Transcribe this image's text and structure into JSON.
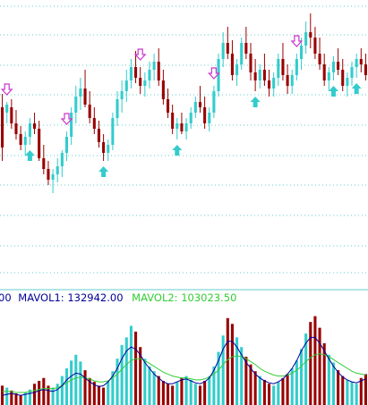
{
  "chart_data": {
    "type": "candlestick",
    "title": "",
    "colors": {
      "up": "#33CCCC",
      "down": "#990000",
      "grid": "#66CCCC",
      "signal_down": "#CC33CC",
      "signal_up": "#33CCCC",
      "mavol1": "#000099",
      "mavol2": "#33CC33",
      "legend_prefix": "#000099"
    },
    "legend": {
      "prefix": "00",
      "mavol1_label": "MAVOL1: 132942.00",
      "mavol2_label": "MAVOL2: 103023.50"
    },
    "price_axis": {
      "ylim": [
        0,
        450
      ],
      "grid": true
    },
    "volume_axis": {
      "ylim": [
        0,
        100
      ],
      "grid": false
    },
    "candles": [
      {
        "o": 120,
        "h": 125,
        "l": 100,
        "c": 105
      },
      {
        "o": 118,
        "h": 122,
        "l": 114,
        "c": 121
      },
      {
        "o": 120,
        "h": 123,
        "l": 112,
        "c": 114
      },
      {
        "o": 114,
        "h": 119,
        "l": 108,
        "c": 110
      },
      {
        "o": 110,
        "h": 113,
        "l": 104,
        "c": 106
      },
      {
        "o": 106,
        "h": 111,
        "l": 102,
        "c": 109
      },
      {
        "o": 109,
        "h": 116,
        "l": 106,
        "c": 114
      },
      {
        "o": 114,
        "h": 118,
        "l": 110,
        "c": 112
      },
      {
        "o": 112,
        "h": 115,
        "l": 100,
        "c": 101
      },
      {
        "o": 101,
        "h": 106,
        "l": 95,
        "c": 97
      },
      {
        "o": 97,
        "h": 100,
        "l": 91,
        "c": 93
      },
      {
        "o": 93,
        "h": 97,
        "l": 88,
        "c": 95
      },
      {
        "o": 95,
        "h": 101,
        "l": 92,
        "c": 98
      },
      {
        "o": 98,
        "h": 104,
        "l": 94,
        "c": 103
      },
      {
        "o": 103,
        "h": 111,
        "l": 100,
        "c": 109
      },
      {
        "o": 109,
        "h": 120,
        "l": 106,
        "c": 118
      },
      {
        "o": 118,
        "h": 128,
        "l": 114,
        "c": 124
      },
      {
        "o": 124,
        "h": 131,
        "l": 119,
        "c": 127
      },
      {
        "o": 127,
        "h": 134,
        "l": 120,
        "c": 121
      },
      {
        "o": 121,
        "h": 126,
        "l": 114,
        "c": 116
      },
      {
        "o": 116,
        "h": 120,
        "l": 110,
        "c": 112
      },
      {
        "o": 112,
        "h": 115,
        "l": 105,
        "c": 107
      },
      {
        "o": 107,
        "h": 110,
        "l": 100,
        "c": 103
      },
      {
        "o": 103,
        "h": 108,
        "l": 100,
        "c": 106
      },
      {
        "o": 106,
        "h": 118,
        "l": 104,
        "c": 116
      },
      {
        "o": 116,
        "h": 126,
        "l": 113,
        "c": 123
      },
      {
        "o": 123,
        "h": 130,
        "l": 118,
        "c": 126
      },
      {
        "o": 126,
        "h": 134,
        "l": 122,
        "c": 130
      },
      {
        "o": 130,
        "h": 138,
        "l": 127,
        "c": 135
      },
      {
        "o": 135,
        "h": 141,
        "l": 129,
        "c": 131
      },
      {
        "o": 131,
        "h": 135,
        "l": 125,
        "c": 128
      },
      {
        "o": 128,
        "h": 133,
        "l": 124,
        "c": 130
      },
      {
        "o": 130,
        "h": 137,
        "l": 127,
        "c": 134
      },
      {
        "o": 134,
        "h": 140,
        "l": 130,
        "c": 137
      },
      {
        "o": 137,
        "h": 142,
        "l": 128,
        "c": 130
      },
      {
        "o": 130,
        "h": 134,
        "l": 121,
        "c": 123
      },
      {
        "o": 123,
        "h": 127,
        "l": 116,
        "c": 118
      },
      {
        "o": 118,
        "h": 121,
        "l": 110,
        "c": 112
      },
      {
        "o": 112,
        "h": 116,
        "l": 108,
        "c": 114
      },
      {
        "o": 114,
        "h": 118,
        "l": 110,
        "c": 111
      },
      {
        "o": 111,
        "h": 116,
        "l": 108,
        "c": 114
      },
      {
        "o": 114,
        "h": 120,
        "l": 112,
        "c": 118
      },
      {
        "o": 118,
        "h": 124,
        "l": 116,
        "c": 122
      },
      {
        "o": 122,
        "h": 128,
        "l": 118,
        "c": 120
      },
      {
        "o": 120,
        "h": 124,
        "l": 112,
        "c": 114
      },
      {
        "o": 114,
        "h": 120,
        "l": 111,
        "c": 118
      },
      {
        "o": 118,
        "h": 128,
        "l": 116,
        "c": 126
      },
      {
        "o": 126,
        "h": 140,
        "l": 124,
        "c": 138
      },
      {
        "o": 138,
        "h": 148,
        "l": 135,
        "c": 144
      },
      {
        "o": 144,
        "h": 150,
        "l": 138,
        "c": 140
      },
      {
        "o": 140,
        "h": 145,
        "l": 130,
        "c": 132
      },
      {
        "o": 132,
        "h": 138,
        "l": 128,
        "c": 136
      },
      {
        "o": 136,
        "h": 146,
        "l": 134,
        "c": 144
      },
      {
        "o": 144,
        "h": 150,
        "l": 138,
        "c": 140
      },
      {
        "o": 140,
        "h": 144,
        "l": 130,
        "c": 133
      },
      {
        "o": 133,
        "h": 138,
        "l": 126,
        "c": 130
      },
      {
        "o": 130,
        "h": 136,
        "l": 127,
        "c": 134
      },
      {
        "o": 134,
        "h": 140,
        "l": 128,
        "c": 130
      },
      {
        "o": 130,
        "h": 134,
        "l": 124,
        "c": 127
      },
      {
        "o": 127,
        "h": 133,
        "l": 124,
        "c": 131
      },
      {
        "o": 131,
        "h": 140,
        "l": 128,
        "c": 138
      },
      {
        "o": 138,
        "h": 144,
        "l": 130,
        "c": 132
      },
      {
        "o": 132,
        "h": 136,
        "l": 125,
        "c": 128
      },
      {
        "o": 128,
        "h": 134,
        "l": 125,
        "c": 132
      },
      {
        "o": 132,
        "h": 140,
        "l": 130,
        "c": 138
      },
      {
        "o": 138,
        "h": 146,
        "l": 134,
        "c": 143
      },
      {
        "o": 143,
        "h": 152,
        "l": 140,
        "c": 148
      },
      {
        "o": 148,
        "h": 155,
        "l": 142,
        "c": 146
      },
      {
        "o": 146,
        "h": 150,
        "l": 138,
        "c": 140
      },
      {
        "o": 140,
        "h": 146,
        "l": 134,
        "c": 136
      },
      {
        "o": 136,
        "h": 140,
        "l": 128,
        "c": 130
      },
      {
        "o": 130,
        "h": 135,
        "l": 126,
        "c": 133
      },
      {
        "o": 133,
        "h": 139,
        "l": 130,
        "c": 137
      },
      {
        "o": 137,
        "h": 142,
        "l": 132,
        "c": 134
      },
      {
        "o": 134,
        "h": 138,
        "l": 126,
        "c": 128
      },
      {
        "o": 128,
        "h": 133,
        "l": 124,
        "c": 131
      },
      {
        "o": 131,
        "h": 137,
        "l": 128,
        "c": 135
      },
      {
        "o": 135,
        "h": 140,
        "l": 131,
        "c": 138
      },
      {
        "o": 138,
        "h": 142,
        "l": 133,
        "c": 136
      },
      {
        "o": 136,
        "h": 140,
        "l": 130,
        "c": 132
      }
    ],
    "volume": [
      20,
      18,
      15,
      12,
      10,
      13,
      16,
      22,
      25,
      28,
      20,
      18,
      22,
      30,
      38,
      46,
      52,
      45,
      36,
      28,
      24,
      20,
      18,
      25,
      35,
      48,
      62,
      70,
      82,
      76,
      60,
      48,
      40,
      35,
      30,
      25,
      22,
      20,
      24,
      28,
      30,
      26,
      22,
      20,
      25,
      30,
      40,
      55,
      72,
      90,
      84,
      70,
      60,
      50,
      42,
      35,
      30,
      26,
      22,
      20,
      24,
      28,
      32,
      38,
      46,
      58,
      74,
      86,
      92,
      80,
      64,
      52,
      44,
      36,
      30,
      26,
      24,
      22,
      28,
      32
    ],
    "mavol1": [
      10,
      11,
      12,
      11,
      10,
      11,
      12,
      13,
      15,
      16,
      15,
      14,
      16,
      20,
      26,
      30,
      33,
      32,
      28,
      24,
      21,
      19,
      20,
      24,
      30,
      38,
      48,
      56,
      60,
      58,
      52,
      44,
      38,
      32,
      28,
      24,
      22,
      22,
      24,
      26,
      27,
      25,
      23,
      22,
      24,
      28,
      36,
      46,
      58,
      66,
      66,
      60,
      52,
      44,
      38,
      32,
      28,
      25,
      23,
      22,
      24,
      27,
      32,
      38,
      46,
      56,
      64,
      70,
      70,
      64,
      56,
      48,
      40,
      34,
      29,
      26,
      24,
      23,
      25,
      27
    ],
    "mavol2": [
      14,
      14,
      14,
      13,
      13,
      13,
      14,
      15,
      16,
      17,
      17,
      17,
      18,
      20,
      23,
      26,
      28,
      29,
      28,
      27,
      25,
      24,
      24,
      25,
      28,
      32,
      37,
      42,
      46,
      48,
      48,
      46,
      43,
      40,
      37,
      34,
      32,
      30,
      29,
      28,
      28,
      27,
      26,
      26,
      27,
      29,
      32,
      36,
      42,
      47,
      50,
      51,
      50,
      48,
      45,
      42,
      38,
      35,
      33,
      31,
      30,
      30,
      31,
      33,
      36,
      40,
      45,
      49,
      52,
      53,
      52,
      50,
      47,
      44,
      41,
      38,
      35,
      33,
      32,
      31
    ],
    "signals": [
      {
        "index": 1,
        "type": "sell"
      },
      {
        "index": 6,
        "type": "buy"
      },
      {
        "index": 14,
        "type": "sell"
      },
      {
        "index": 22,
        "type": "buy"
      },
      {
        "index": 30,
        "type": "sell"
      },
      {
        "index": 38,
        "type": "buy"
      },
      {
        "index": 46,
        "type": "sell"
      },
      {
        "index": 55,
        "type": "buy"
      },
      {
        "index": 64,
        "type": "sell"
      },
      {
        "index": 72,
        "type": "buy"
      },
      {
        "index": 77,
        "type": "buy"
      }
    ]
  }
}
